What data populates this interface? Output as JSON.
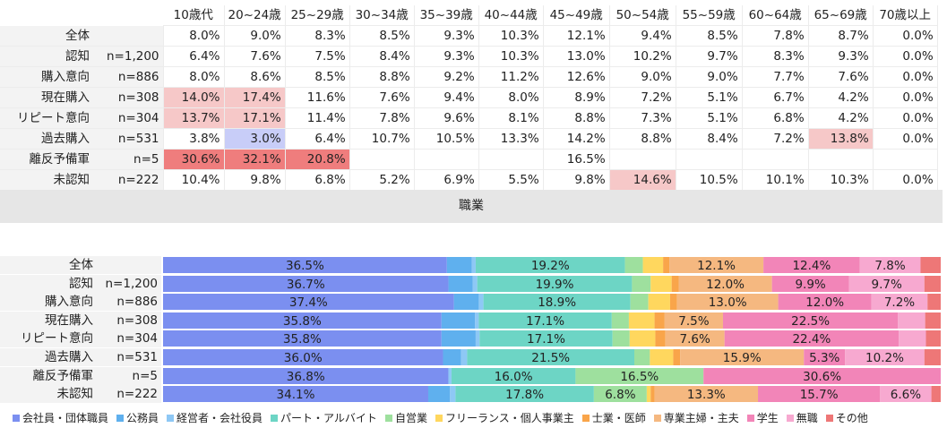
{
  "age_table": {
    "headers": [
      "10歳代",
      "20~24歳",
      "25~29歳",
      "30~34歳",
      "35~39歳",
      "40~44歳",
      "45~49歳",
      "50~54歳",
      "55~59歳",
      "60~64歳",
      "65~69歳",
      "70歳以上"
    ],
    "rows": [
      {
        "label": "全体",
        "n": "",
        "values": [
          "8.0%",
          "9.0%",
          "8.3%",
          "8.5%",
          "9.3%",
          "10.3%",
          "12.1%",
          "9.4%",
          "8.5%",
          "7.8%",
          "8.7%",
          "0.0%"
        ],
        "highlights": [
          null,
          null,
          null,
          null,
          null,
          null,
          null,
          null,
          null,
          null,
          null,
          null
        ]
      },
      {
        "label": "認知",
        "n": "n=1,200",
        "values": [
          "6.4%",
          "7.6%",
          "7.5%",
          "8.4%",
          "9.3%",
          "10.3%",
          "13.0%",
          "10.2%",
          "9.7%",
          "8.3%",
          "9.3%",
          "0.0%"
        ],
        "highlights": [
          null,
          null,
          null,
          null,
          null,
          null,
          null,
          null,
          null,
          null,
          null,
          null
        ]
      },
      {
        "label": "購入意向",
        "n": "n=886",
        "values": [
          "8.0%",
          "8.6%",
          "8.5%",
          "8.8%",
          "9.2%",
          "11.2%",
          "12.6%",
          "9.0%",
          "9.0%",
          "7.7%",
          "7.6%",
          "0.0%"
        ],
        "highlights": [
          null,
          null,
          null,
          null,
          null,
          null,
          null,
          null,
          null,
          null,
          null,
          null
        ]
      },
      {
        "label": "現在購入",
        "n": "n=308",
        "values": [
          "14.0%",
          "17.4%",
          "11.6%",
          "7.6%",
          "9.4%",
          "8.0%",
          "8.9%",
          "7.2%",
          "5.1%",
          "6.7%",
          "4.2%",
          "0.0%"
        ],
        "highlights": [
          "#f6c8c8",
          "#f6c8c8",
          null,
          null,
          null,
          null,
          null,
          null,
          null,
          null,
          null,
          null
        ]
      },
      {
        "label": "リピート意向",
        "n": "n=304",
        "values": [
          "13.7%",
          "17.1%",
          "11.4%",
          "7.8%",
          "9.6%",
          "8.1%",
          "8.8%",
          "7.3%",
          "5.1%",
          "6.8%",
          "4.2%",
          "0.0%"
        ],
        "highlights": [
          "#f6c8c8",
          "#f6c8c8",
          null,
          null,
          null,
          null,
          null,
          null,
          null,
          null,
          null,
          null
        ]
      },
      {
        "label": "過去購入",
        "n": "n=531",
        "values": [
          "3.8%",
          "3.0%",
          "6.4%",
          "10.7%",
          "10.5%",
          "13.3%",
          "14.2%",
          "8.8%",
          "8.4%",
          "7.2%",
          "13.8%",
          "0.0%"
        ],
        "highlights": [
          null,
          "#c8cdf8",
          null,
          null,
          null,
          null,
          null,
          null,
          null,
          null,
          "#f6c8c8",
          null
        ]
      },
      {
        "label": "離反予備軍",
        "n": "n=5",
        "values": [
          "30.6%",
          "32.1%",
          "20.8%",
          "",
          "",
          "",
          "16.5%",
          "",
          "",
          "",
          "",
          ""
        ],
        "highlights": [
          "#ef7d7d",
          "#ef7d7d",
          "#ef7d7d",
          null,
          null,
          null,
          null,
          null,
          null,
          null,
          null,
          null
        ]
      },
      {
        "label": "未認知",
        "n": "n=222",
        "values": [
          "10.4%",
          "9.8%",
          "6.8%",
          "5.2%",
          "6.9%",
          "5.5%",
          "9.8%",
          "14.6%",
          "10.5%",
          "10.1%",
          "10.3%",
          "0.0%"
        ],
        "highlights": [
          null,
          null,
          null,
          null,
          null,
          null,
          null,
          "#f6c8c8",
          null,
          null,
          null,
          null
        ]
      }
    ]
  },
  "section_title": "職業",
  "chart_data": {
    "type": "bar",
    "orientation": "horizontal",
    "stacked": "100%",
    "categories": [
      "全体",
      "認知",
      "購入意向",
      "現在購入",
      "リピート意向",
      "過去購入",
      "離反予備軍",
      "未認知"
    ],
    "n_labels": [
      "",
      "n=1,200",
      "n=886",
      "n=308",
      "n=304",
      "n=531",
      "n=5",
      "n=222"
    ],
    "xlim": [
      0,
      100
    ],
    "legend_position": "bottom",
    "series": [
      {
        "name": "会社員・団体職員",
        "color": "#7b8ff0",
        "values": [
          36.5,
          36.7,
          37.4,
          35.8,
          35.8,
          36.0,
          36.8,
          34.1
        ]
      },
      {
        "name": "公務員",
        "color": "#5fb0ee",
        "values": [
          3.2,
          3.1,
          3.2,
          4.3,
          4.4,
          2.3,
          0,
          2.8
        ]
      },
      {
        "name": "経営者・会社役員",
        "color": "#8ec8f5",
        "values": [
          0.5,
          0.6,
          0.6,
          0.5,
          0.5,
          0.8,
          0.4,
          0.7
        ]
      },
      {
        "name": "パート・アルバイト",
        "color": "#6dd5c5",
        "values": [
          19.2,
          19.9,
          18.9,
          17.1,
          17.1,
          21.5,
          16.0,
          17.8
        ]
      },
      {
        "name": "自営業",
        "color": "#9ee09e",
        "values": [
          2.3,
          2.4,
          2.3,
          2.2,
          2.2,
          2.0,
          16.5,
          6.8
        ]
      },
      {
        "name": "フリーランス・個人事業主",
        "color": "#ffd75e",
        "values": [
          2.6,
          2.7,
          2.8,
          3.3,
          3.3,
          3.0,
          0,
          0.5
        ]
      },
      {
        "name": "士業・医師",
        "color": "#f9a54a",
        "values": [
          0.8,
          0.9,
          0.9,
          1.3,
          1.3,
          0.9,
          0,
          0.5
        ]
      },
      {
        "name": "専業主婦・主夫",
        "color": "#f5b880",
        "values": [
          12.1,
          12.0,
          13.0,
          7.5,
          7.6,
          15.9,
          0,
          13.3
        ]
      },
      {
        "name": "学生",
        "color": "#f285b8",
        "values": [
          12.4,
          9.9,
          12.0,
          22.5,
          22.4,
          5.3,
          30.6,
          15.7
        ]
      },
      {
        "name": "無職",
        "color": "#f7a9d0",
        "values": [
          7.8,
          9.7,
          7.2,
          3.5,
          3.5,
          10.2,
          0,
          6.6
        ]
      },
      {
        "name": "その他",
        "color": "#ee7777",
        "values": [
          2.6,
          2.1,
          1.7,
          2.0,
          1.9,
          2.1,
          0,
          1.2
        ]
      }
    ],
    "value_labels_shown_for": [
      "会社員・団体職員",
      "パート・アルバイト",
      "自営業",
      "専業主婦・主夫",
      "学生",
      "無職"
    ],
    "label_threshold": 5
  }
}
